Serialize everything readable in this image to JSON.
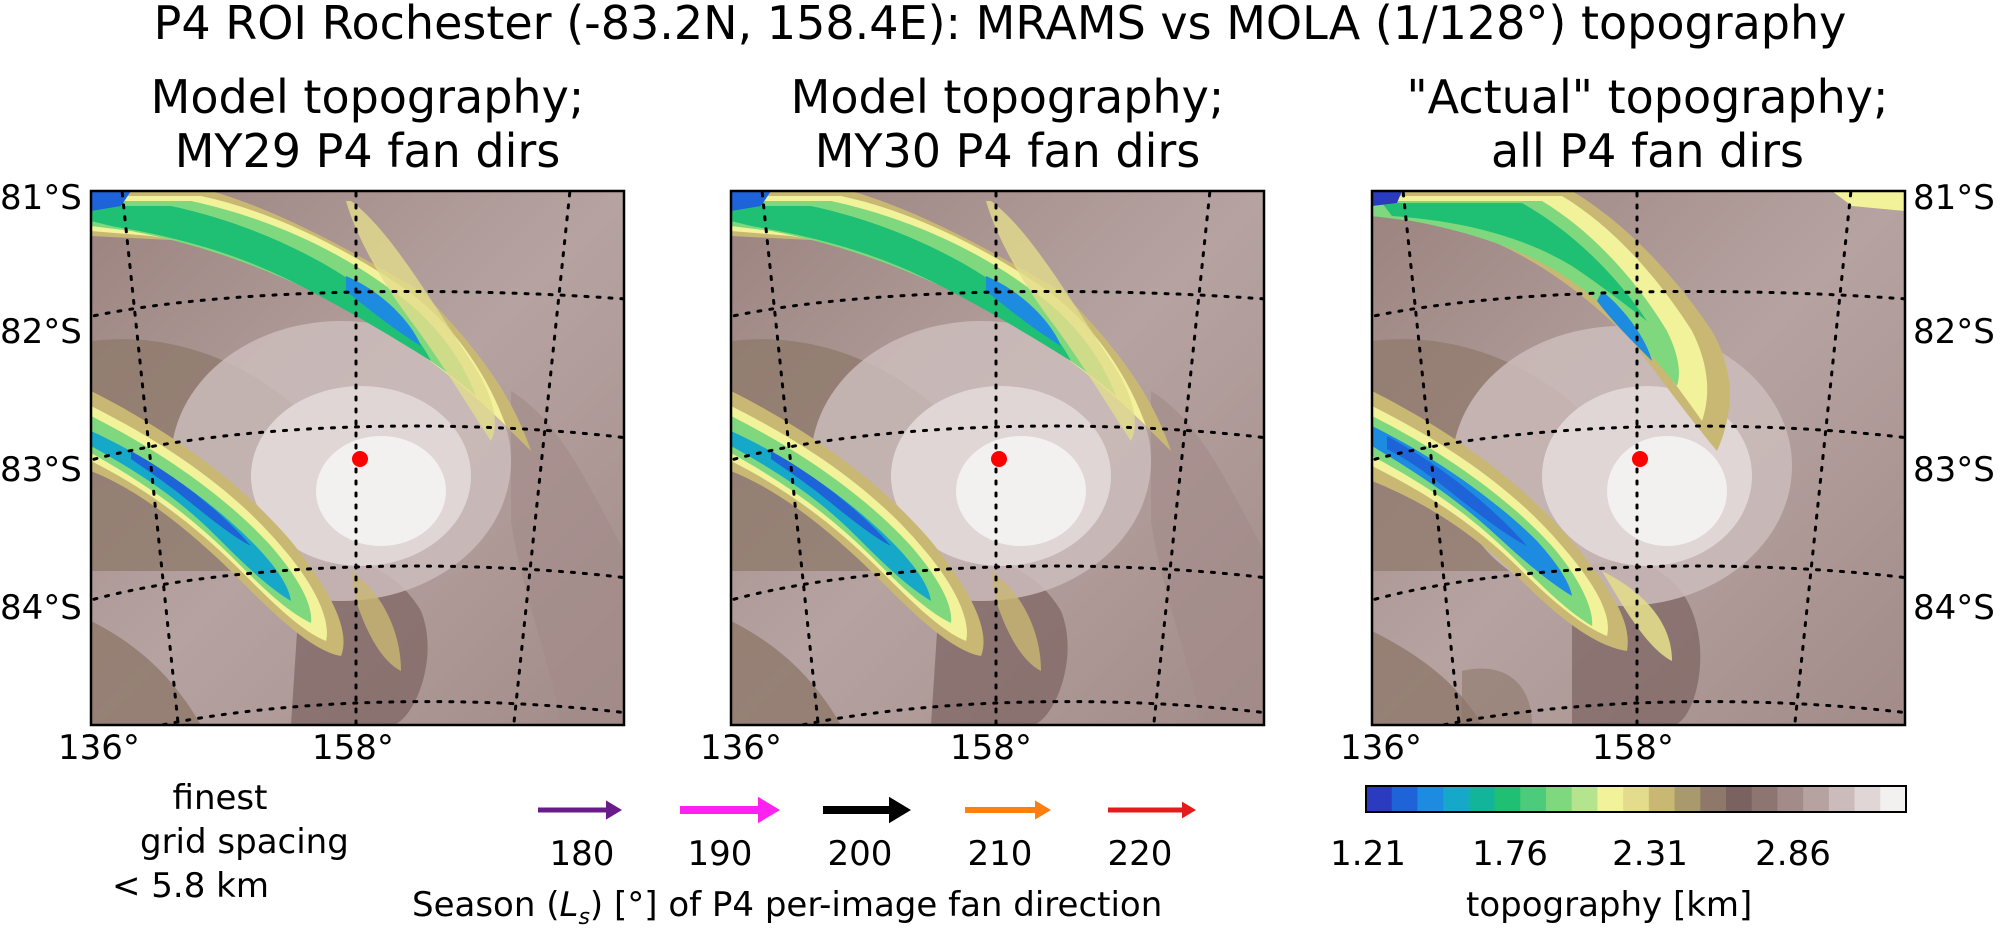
{
  "figure_title": "P4 ROI Rochester (-83.2N, 158.4E): MRAMS vs MOLA (1/128°) topography",
  "panels": [
    {
      "title_line1": "Model topography;",
      "title_line2": "MY29 P4 fan dirs"
    },
    {
      "title_line1": "Model topography;",
      "title_line2": "MY30 P4 fan dirs"
    },
    {
      "title_line1": "\"Actual\" topography;",
      "title_line2": "all P4 fan dirs"
    }
  ],
  "lat_labels": [
    "81°S",
    "82°S",
    "83°S",
    "84°S"
  ],
  "lon_labels": [
    "136°",
    "158°"
  ],
  "grid_note": {
    "line1": "finest",
    "line2": "grid spacing",
    "line3": "< 5.8 km"
  },
  "season_legend": {
    "xlabel": "Season (L_s) [°] of P4 per-image fan direction",
    "xlabel_pre": "Season (",
    "xlabel_sym": "L",
    "xlabel_sub": "s",
    "xlabel_post": ") [°] of P4 per-image fan direction",
    "arrows": [
      {
        "ls": "180",
        "color": "#6a1b8a"
      },
      {
        "ls": "190",
        "color": "#ff21f0"
      },
      {
        "ls": "200",
        "color": "#000000"
      },
      {
        "ls": "210",
        "color": "#ff7f0e"
      },
      {
        "ls": "220",
        "color": "#e41a1c"
      }
    ]
  },
  "chart_data": {
    "type": "heatmap",
    "title": "P4 ROI Rochester (-83.2N, 158.4E): MRAMS vs MOLA (1/128°) topography",
    "roi": {
      "lat": -83.2,
      "lon": 158.4,
      "marker_color": "#ff0000"
    },
    "lat_ticks": [
      -81,
      -82,
      -83,
      -84
    ],
    "lon_ticks": [
      136,
      158
    ],
    "colorbar": {
      "label": "topography [km]",
      "tick_labels": [
        "1.21",
        "1.76",
        "2.31",
        "2.86"
      ],
      "ticks": [
        1.21,
        1.76,
        2.31,
        2.86
      ],
      "range": [
        1.21,
        3.3
      ],
      "colors": [
        "#2b3bbf",
        "#1f63d9",
        "#1c8be0",
        "#16a8c9",
        "#12b59a",
        "#1fbf74",
        "#4ccc7a",
        "#7fd87e",
        "#b5e48f",
        "#f2f29a",
        "#e2dc8c",
        "#c9b874",
        "#a89a6c",
        "#8e786a",
        "#7a6260",
        "#8d7572",
        "#a28b88",
        "#b6a3a1",
        "#cbbcbb",
        "#e0d6d6",
        "#f3f0f0"
      ]
    },
    "panels": [
      "MY29 P4 fan dirs",
      "MY30 P4 fan dirs",
      "all P4 fan dirs"
    ]
  }
}
